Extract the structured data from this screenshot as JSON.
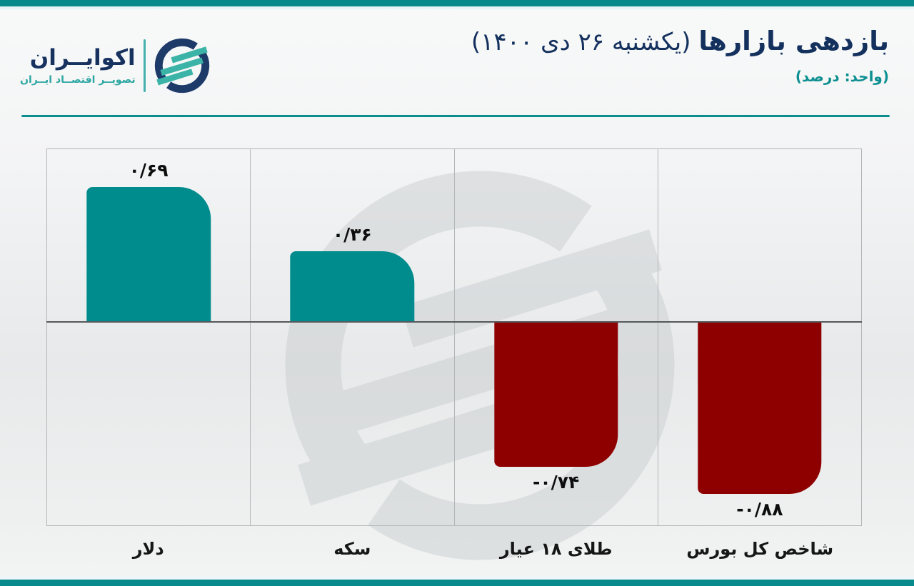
{
  "brand": {
    "name": "اکوایــران",
    "tagline": "تصویــر اقتصــاد ایــران"
  },
  "header": {
    "title_bold": "بازدهی بازارها",
    "title_rest": "(یکشنبه ۲۶ دی ۱۴۰۰)",
    "subtitle": "(واحد: درصد)"
  },
  "chart_data": {
    "type": "bar",
    "title": "بازدهی بازارها (یکشنبه ۲۶ دی ۱۴۰۰)",
    "unit_label": "(واحد: درصد)",
    "categories": [
      "دلار",
      "سکه",
      "طلای ۱۸ عیار",
      "شاخص کل بورس"
    ],
    "values": [
      0.69,
      0.36,
      -0.74,
      -0.88
    ],
    "value_labels": [
      "۰/۶۹",
      "۰/۳۶",
      "-۰/۷۴",
      "-۰/۸۸"
    ],
    "positive_color": "#008b8d",
    "negative_color": "#8e0000",
    "baseline": 0,
    "ylim": [
      -1.05,
      0.88
    ],
    "grid": "vertical-column-dividers",
    "legend": "none",
    "watermark": "ecoiran-logo"
  },
  "colors": {
    "accent_teal": "#088a8c",
    "brand_navy": "#14315e",
    "brand_teal_light": "#3bb3a6",
    "value_text": "#0d0d0d"
  }
}
